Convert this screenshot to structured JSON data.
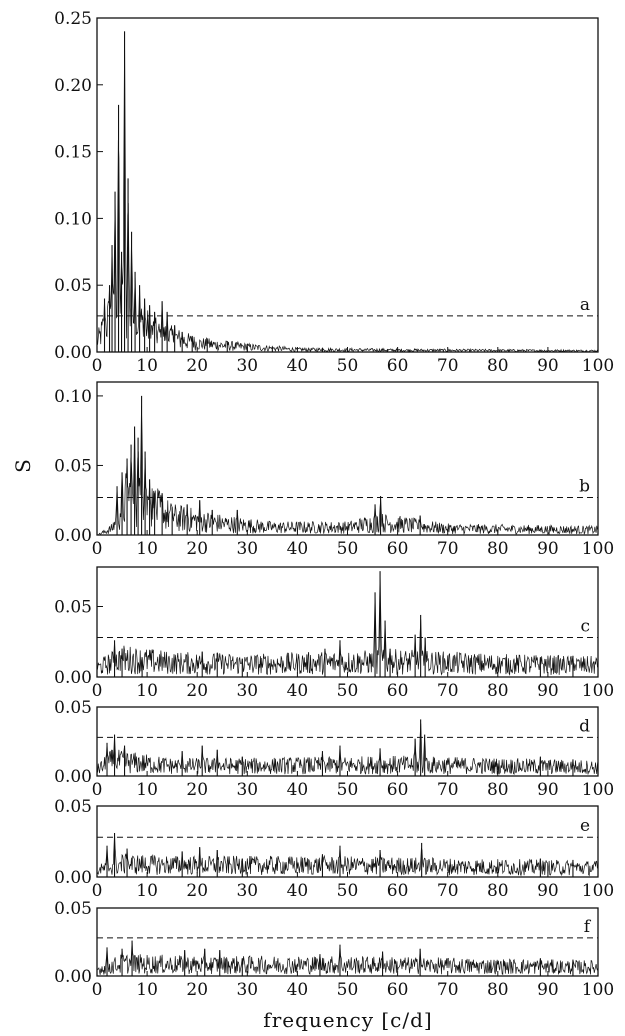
{
  "chart_data": {
    "type": "line",
    "xlabel": "frequency [c/d]",
    "ylabel": "S",
    "x_ticks": [
      "0",
      "10",
      "20",
      "30",
      "40",
      "50",
      "60",
      "70",
      "80",
      "90",
      "100"
    ],
    "x_range": [
      0,
      100
    ],
    "line_color": "#111111",
    "threshold_style": "dashed",
    "panels": [
      {
        "label": "a",
        "ylim": [
          0,
          0.25
        ],
        "y_ticks": [
          "0.00",
          "0.05",
          "0.10",
          "0.15",
          "0.20",
          "0.25"
        ],
        "threshold": 0.027,
        "peaks": [
          {
            "x": 1.5,
            "y": 0.04
          },
          {
            "x": 2.5,
            "y": 0.05
          },
          {
            "x": 3.0,
            "y": 0.08
          },
          {
            "x": 3.6,
            "y": 0.12
          },
          {
            "x": 4.3,
            "y": 0.185
          },
          {
            "x": 4.9,
            "y": 0.075
          },
          {
            "x": 5.5,
            "y": 0.24
          },
          {
            "x": 6.2,
            "y": 0.13
          },
          {
            "x": 6.9,
            "y": 0.09
          },
          {
            "x": 7.6,
            "y": 0.06
          },
          {
            "x": 8.5,
            "y": 0.05
          },
          {
            "x": 9.5,
            "y": 0.04
          },
          {
            "x": 10.5,
            "y": 0.035
          },
          {
            "x": 11.5,
            "y": 0.03
          },
          {
            "x": 13.0,
            "y": 0.038
          },
          {
            "x": 14.0,
            "y": 0.03
          },
          {
            "x": 15.5,
            "y": 0.02
          },
          {
            "x": 17.0,
            "y": 0.015
          },
          {
            "x": 19.0,
            "y": 0.012
          },
          {
            "x": 22.0,
            "y": 0.01
          },
          {
            "x": 26.0,
            "y": 0.008
          },
          {
            "x": 30.0,
            "y": 0.006
          },
          {
            "x": 35.0,
            "y": 0.004
          },
          {
            "x": 45.0,
            "y": 0.003
          },
          {
            "x": 58.0,
            "y": 0.002
          }
        ],
        "noise": [
          {
            "x": 0,
            "y": 0.008
          },
          {
            "x": 2,
            "y": 0.025
          },
          {
            "x": 5,
            "y": 0.035
          },
          {
            "x": 8,
            "y": 0.025
          },
          {
            "x": 12,
            "y": 0.015
          },
          {
            "x": 20,
            "y": 0.007
          },
          {
            "x": 30,
            "y": 0.004
          },
          {
            "x": 40,
            "y": 0.002
          },
          {
            "x": 60,
            "y": 0.0015
          },
          {
            "x": 100,
            "y": 0.001
          }
        ]
      },
      {
        "label": "b",
        "ylim": [
          0,
          0.11
        ],
        "y_ticks": [
          "0.00",
          "0.05",
          "0.10"
        ],
        "y_tick_values": [
          0,
          0.05,
          0.1
        ],
        "threshold": 0.027,
        "peaks": [
          {
            "x": 4.0,
            "y": 0.035
          },
          {
            "x": 5.0,
            "y": 0.045
          },
          {
            "x": 6.0,
            "y": 0.055
          },
          {
            "x": 6.8,
            "y": 0.065
          },
          {
            "x": 7.5,
            "y": 0.078
          },
          {
            "x": 8.2,
            "y": 0.07
          },
          {
            "x": 8.9,
            "y": 0.1
          },
          {
            "x": 9.6,
            "y": 0.06
          },
          {
            "x": 10.5,
            "y": 0.04
          },
          {
            "x": 11.5,
            "y": 0.03
          },
          {
            "x": 13.0,
            "y": 0.03
          },
          {
            "x": 15.0,
            "y": 0.02
          },
          {
            "x": 18.0,
            "y": 0.022
          },
          {
            "x": 20.5,
            "y": 0.025
          },
          {
            "x": 23.0,
            "y": 0.018
          },
          {
            "x": 28.0,
            "y": 0.018
          },
          {
            "x": 55.5,
            "y": 0.022
          },
          {
            "x": 56.6,
            "y": 0.028
          },
          {
            "x": 64.5,
            "y": 0.014
          }
        ],
        "noise": [
          {
            "x": 0,
            "y": 0.0
          },
          {
            "x": 3,
            "y": 0.005
          },
          {
            "x": 6,
            "y": 0.03
          },
          {
            "x": 10,
            "y": 0.025
          },
          {
            "x": 15,
            "y": 0.014
          },
          {
            "x": 25,
            "y": 0.009
          },
          {
            "x": 35,
            "y": 0.006
          },
          {
            "x": 50,
            "y": 0.006
          },
          {
            "x": 56,
            "y": 0.01
          },
          {
            "x": 70,
            "y": 0.005
          },
          {
            "x": 100,
            "y": 0.004
          }
        ]
      },
      {
        "label": "c",
        "ylim": [
          0,
          0.078
        ],
        "y_ticks": [
          "0.00",
          "0.05"
        ],
        "y_tick_values": [
          0,
          0.05
        ],
        "threshold": 0.028,
        "peaks": [
          {
            "x": 3.5,
            "y": 0.026
          },
          {
            "x": 5.0,
            "y": 0.02
          },
          {
            "x": 9.0,
            "y": 0.014
          },
          {
            "x": 21.0,
            "y": 0.018
          },
          {
            "x": 24.0,
            "y": 0.017
          },
          {
            "x": 29.0,
            "y": 0.013
          },
          {
            "x": 45.5,
            "y": 0.02
          },
          {
            "x": 48.5,
            "y": 0.026
          },
          {
            "x": 55.5,
            "y": 0.06
          },
          {
            "x": 56.5,
            "y": 0.075
          },
          {
            "x": 57.5,
            "y": 0.04
          },
          {
            "x": 58.5,
            "y": 0.02
          },
          {
            "x": 63.5,
            "y": 0.03
          },
          {
            "x": 64.6,
            "y": 0.044
          },
          {
            "x": 65.5,
            "y": 0.028
          },
          {
            "x": 88.5,
            "y": 0.014
          },
          {
            "x": 95.0,
            "y": 0.015
          }
        ],
        "noise": [
          {
            "x": 0,
            "y": 0.007
          },
          {
            "x": 5,
            "y": 0.014
          },
          {
            "x": 15,
            "y": 0.011
          },
          {
            "x": 30,
            "y": 0.01
          },
          {
            "x": 45,
            "y": 0.011
          },
          {
            "x": 60,
            "y": 0.012
          },
          {
            "x": 80,
            "y": 0.01
          },
          {
            "x": 100,
            "y": 0.009
          }
        ]
      },
      {
        "label": "d",
        "ylim": [
          0,
          0.05
        ],
        "y_ticks": [
          "0.00",
          "0.05"
        ],
        "y_tick_values": [
          0,
          0.05
        ],
        "threshold": 0.028,
        "peaks": [
          {
            "x": 2.0,
            "y": 0.024
          },
          {
            "x": 3.5,
            "y": 0.03
          },
          {
            "x": 5.5,
            "y": 0.022
          },
          {
            "x": 17.0,
            "y": 0.018
          },
          {
            "x": 21.0,
            "y": 0.022
          },
          {
            "x": 24.0,
            "y": 0.019
          },
          {
            "x": 29.0,
            "y": 0.014
          },
          {
            "x": 45.0,
            "y": 0.018
          },
          {
            "x": 48.5,
            "y": 0.022
          },
          {
            "x": 56.5,
            "y": 0.02
          },
          {
            "x": 63.5,
            "y": 0.027
          },
          {
            "x": 64.6,
            "y": 0.041
          },
          {
            "x": 65.4,
            "y": 0.03
          },
          {
            "x": 88.5,
            "y": 0.014
          },
          {
            "x": 95.0,
            "y": 0.012
          }
        ],
        "noise": [
          {
            "x": 0,
            "y": 0.005
          },
          {
            "x": 3,
            "y": 0.012
          },
          {
            "x": 15,
            "y": 0.008
          },
          {
            "x": 30,
            "y": 0.008
          },
          {
            "x": 60,
            "y": 0.009
          },
          {
            "x": 100,
            "y": 0.007
          }
        ]
      },
      {
        "label": "e",
        "ylim": [
          0,
          0.05
        ],
        "y_ticks": [
          "0.00",
          "0.05"
        ],
        "y_tick_values": [
          0,
          0.05
        ],
        "threshold": 0.028,
        "peaks": [
          {
            "x": 2.0,
            "y": 0.022
          },
          {
            "x": 3.5,
            "y": 0.031
          },
          {
            "x": 6.0,
            "y": 0.02
          },
          {
            "x": 17.0,
            "y": 0.018
          },
          {
            "x": 20.5,
            "y": 0.021
          },
          {
            "x": 24.0,
            "y": 0.019
          },
          {
            "x": 29.0,
            "y": 0.013
          },
          {
            "x": 45.0,
            "y": 0.016
          },
          {
            "x": 48.5,
            "y": 0.022
          },
          {
            "x": 56.5,
            "y": 0.019
          },
          {
            "x": 64.8,
            "y": 0.024
          },
          {
            "x": 88.5,
            "y": 0.013
          },
          {
            "x": 95.0,
            "y": 0.012
          }
        ],
        "noise": [
          {
            "x": 0,
            "y": 0.005
          },
          {
            "x": 5,
            "y": 0.01
          },
          {
            "x": 20,
            "y": 0.009
          },
          {
            "x": 50,
            "y": 0.009
          },
          {
            "x": 100,
            "y": 0.007
          }
        ]
      },
      {
        "label": "f",
        "ylim": [
          0,
          0.05
        ],
        "y_ticks": [
          "0.00",
          "0.05"
        ],
        "y_tick_values": [
          0,
          0.05
        ],
        "threshold": 0.028,
        "peaks": [
          {
            "x": 2.0,
            "y": 0.021
          },
          {
            "x": 5.0,
            "y": 0.02
          },
          {
            "x": 7.0,
            "y": 0.026
          },
          {
            "x": 17.5,
            "y": 0.019
          },
          {
            "x": 21.5,
            "y": 0.02
          },
          {
            "x": 24.5,
            "y": 0.019
          },
          {
            "x": 29.0,
            "y": 0.013
          },
          {
            "x": 44.5,
            "y": 0.016
          },
          {
            "x": 48.5,
            "y": 0.023
          },
          {
            "x": 57.0,
            "y": 0.018
          },
          {
            "x": 64.5,
            "y": 0.02
          },
          {
            "x": 88.5,
            "y": 0.013
          },
          {
            "x": 95.0,
            "y": 0.012
          }
        ],
        "noise": [
          {
            "x": 0,
            "y": 0.005
          },
          {
            "x": 5,
            "y": 0.01
          },
          {
            "x": 20,
            "y": 0.009
          },
          {
            "x": 50,
            "y": 0.009
          },
          {
            "x": 100,
            "y": 0.007
          }
        ]
      }
    ]
  }
}
